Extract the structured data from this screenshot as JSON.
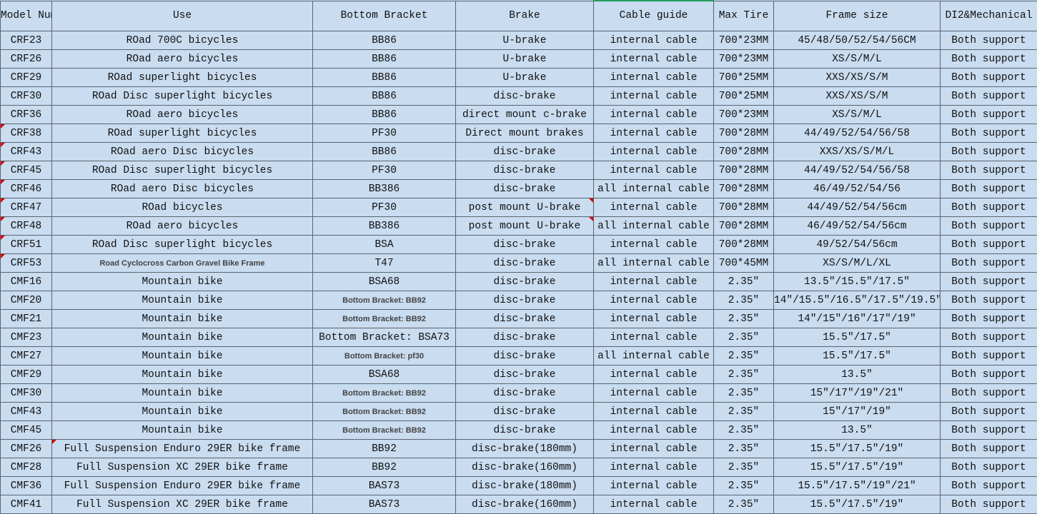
{
  "table": {
    "header": [
      "Model Number",
      "Use",
      "Bottom Bracket",
      "Brake",
      "Cable guide",
      "Max Tire",
      "Frame size",
      "DI2&Mechanical"
    ],
    "rows": [
      [
        "CRF23",
        "ROad 700C bicycles",
        "BB86",
        "U-brake",
        "internal cable",
        "700*23MM",
        "45/48/50/52/54/56CM",
        "Both support"
      ],
      [
        "CRF26",
        "ROad aero bicycles",
        "BB86",
        "U-brake",
        "internal cable",
        "700*23MM",
        "XS/S/M/L",
        "Both support"
      ],
      [
        "CRF29",
        "ROad superlight bicycles",
        "BB86",
        "U-brake",
        "internal cable",
        "700*25MM",
        "XXS/XS/S/M",
        "Both support"
      ],
      [
        "CRF30",
        "ROad Disc superlight bicycles",
        "BB86",
        "disc-brake",
        "internal cable",
        "700*25MM",
        "XXS/XS/S/M",
        "Both support"
      ],
      [
        "CRF36",
        "ROad aero bicycles",
        "BB86",
        "direct mount c-brake",
        "internal cable",
        "700*23MM",
        "XS/S/M/L",
        "Both support"
      ],
      [
        "CRF38",
        "ROad superlight bicycles",
        "PF30",
        "Direct mount brakes",
        "internal cable",
        "700*28MM",
        "44/49/52/54/56/58",
        "Both support"
      ],
      [
        "CRF43",
        "ROad aero Disc bicycles",
        "BB86",
        "disc-brake",
        "internal cable",
        "700*28MM",
        "XXS/XS/S/M/L",
        "Both support"
      ],
      [
        "CRF45",
        "ROad Disc superlight bicycles",
        "PF30",
        "disc-brake",
        "internal cable",
        "700*28MM",
        "44/49/52/54/56/58",
        "Both support"
      ],
      [
        "CRF46",
        "ROad aero Disc bicycles",
        "BB386",
        "disc-brake",
        "all internal cable",
        "700*28MM",
        "46/49/52/54/56",
        "Both support"
      ],
      [
        "CRF47",
        "ROad bicycles",
        "PF30",
        "post mount U-brake",
        "internal cable",
        "700*28MM",
        "44/49/52/54/56cm",
        "Both support"
      ],
      [
        "CRF48",
        "ROad aero bicycles",
        "BB386",
        "post mount U-brake",
        "all internal cable",
        "700*28MM",
        "46/49/52/54/56cm",
        "Both support"
      ],
      [
        "CRF51",
        "ROad Disc superlight bicycles",
        "BSA",
        "disc-brake",
        "internal cable",
        "700*28MM",
        "49/52/54/56cm",
        "Both support"
      ],
      [
        "CRF53",
        "Road Cyclocross Carbon Gravel Bike Frame",
        "T47",
        "disc-brake",
        "all internal cable",
        "700*45MM",
        "XS/S/M/L/XL",
        "Both support"
      ],
      [
        "CMF16",
        "Mountain bike",
        "BSA68",
        "disc-brake",
        "internal cable",
        "2.35″",
        "13.5″/15.5″/17.5″",
        "Both support"
      ],
      [
        "CMF20",
        "Mountain bike",
        "Bottom Bracket: BB92",
        "disc-brake",
        "internal cable",
        "2.35″",
        "14″/15.5″/16.5″/17.5″/19.5″",
        "Both support"
      ],
      [
        "CMF21",
        "Mountain bike",
        "Bottom Bracket: BB92",
        "disc-brake",
        "internal cable",
        "2.35″",
        "14″/15″/16″/17″/19″",
        "Both support"
      ],
      [
        "CMF23",
        "Mountain bike",
        "Bottom Bracket: BSA73",
        "disc-brake",
        "internal cable",
        "2.35″",
        "15.5″/17.5″",
        "Both support"
      ],
      [
        "CMF27",
        "Mountain bike",
        "Bottom Bracket: pf30",
        "disc-brake",
        "all internal cable",
        "2.35″",
        "15.5″/17.5″",
        "Both support"
      ],
      [
        "CMF29",
        "Mountain bike",
        "BSA68",
        "disc-brake",
        "internal cable",
        "2.35″",
        "13.5″",
        "Both support"
      ],
      [
        "CMF30",
        "Mountain bike",
        "Bottom Bracket: BB92",
        "disc-brake",
        "internal cable",
        "2.35″",
        "15″/17″/19″/21″",
        "Both support"
      ],
      [
        "CMF43",
        "Mountain bike",
        "Bottom Bracket: BB92",
        "disc-brake",
        "internal cable",
        "2.35″",
        "15″/17″/19″",
        "Both support"
      ],
      [
        "CMF45",
        "Mountain bike",
        "Bottom Bracket: BB92",
        "disc-brake",
        "internal cable",
        "2.35″",
        "13.5″",
        "Both support"
      ],
      [
        "CMF26",
        "Full Suspension Enduro 29ER bike frame",
        "BB92",
        "disc-brake(180mm)",
        "internal cable",
        "2.35″",
        "15.5″/17.5″/19″",
        "Both support"
      ],
      [
        "CMF28",
        "Full Suspension XC 29ER bike frame",
        "BB92",
        "disc-brake(160mm)",
        "internal cable",
        "2.35″",
        "15.5″/17.5″/19″",
        "Both support"
      ],
      [
        "CMF36",
        "Full Suspension Enduro 29ER bike frame",
        "BAS73",
        "disc-brake(180mm)",
        "internal cable",
        "2.35″",
        "15.5″/17.5″/19″/21″",
        "Both support"
      ],
      [
        "CMF41",
        "Full Suspension XC 29ER bike frame",
        "BAS73",
        "disc-brake(160mm)",
        "internal cable",
        "2.35″",
        "15.5″/17.5″/19″",
        "Both support"
      ]
    ]
  }
}
